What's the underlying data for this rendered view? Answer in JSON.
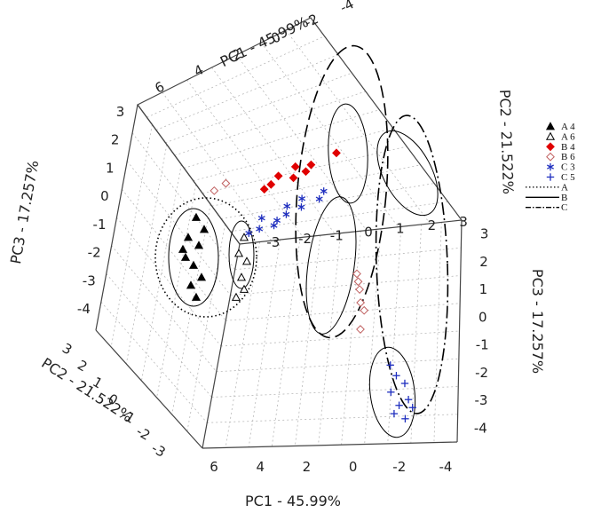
{
  "chart_data": {
    "type": "scatter",
    "projection": "3d",
    "axes": {
      "pc1": {
        "label": "PC1 - 45.99%",
        "ticks": [
          "6",
          "4",
          "2",
          "0",
          "-2",
          "-4"
        ]
      },
      "pc2": {
        "label": "PC2 - 21.522%",
        "ticks": [
          "3",
          "2",
          "1",
          "0",
          "-1",
          "-2",
          "-3"
        ]
      },
      "pc3": {
        "label": "PC3 - 17.257%",
        "ticks": [
          "3",
          "2",
          "1",
          "0",
          "-1",
          "-2",
          "-3",
          "-4"
        ]
      }
    },
    "left_wall_ticks": {
      "pc3": [
        "3",
        "2",
        "1",
        "0",
        "-1",
        "-2",
        "-3",
        "-4"
      ],
      "pc2": [
        "3",
        "2",
        "1",
        "0",
        "-1",
        "-2",
        "-3"
      ]
    },
    "legend": [
      {
        "label": "A 4",
        "marker": "triangle-filled",
        "color": "#000000"
      },
      {
        "label": "A 6",
        "marker": "triangle-open",
        "color": "#000000"
      },
      {
        "label": "B 4",
        "marker": "diamond-filled",
        "color": "#e00000"
      },
      {
        "label": "B 6",
        "marker": "diamond-open",
        "color": "#c06060"
      },
      {
        "label": "C 3",
        "marker": "asterisk",
        "color": "#1f2fbf"
      },
      {
        "label": "C 5",
        "marker": "plus",
        "color": "#1f2fbf"
      },
      {
        "label": "A",
        "line": "dotted",
        "color": "#000000"
      },
      {
        "label": "B",
        "line": "solid",
        "color": "#000000"
      },
      {
        "label": "C",
        "line": "dash-dot",
        "color": "#000000"
      }
    ],
    "series": [
      {
        "name": "A 4",
        "points": [
          {
            "pc1": 5.6,
            "pc3": -1.4
          },
          {
            "pc1": 5.9,
            "pc3": -1.7
          },
          {
            "pc1": 5.3,
            "pc3": -1.9
          },
          {
            "pc1": 5.7,
            "pc3": -2.1
          },
          {
            "pc1": 5.2,
            "pc3": -2.4
          },
          {
            "pc1": 5.5,
            "pc3": -2.6
          },
          {
            "pc1": 5.8,
            "pc3": -2.9
          },
          {
            "pc1": 5.4,
            "pc3": -3.1
          },
          {
            "pc1": 5.6,
            "pc3": -3.4
          },
          {
            "pc1": 5.1,
            "pc3": -2.2
          }
        ]
      },
      {
        "name": "A 6",
        "points": [
          {
            "pc1": 4.2,
            "pc3": -1.9
          },
          {
            "pc1": 4.0,
            "pc3": -2.3
          },
          {
            "pc1": 4.3,
            "pc3": -2.5
          },
          {
            "pc1": 4.1,
            "pc3": -2.9
          },
          {
            "pc1": 4.2,
            "pc3": -3.2
          },
          {
            "pc1": 3.9,
            "pc3": -3.4
          }
        ]
      },
      {
        "name": "B 4",
        "points": [
          {
            "pc1": 0.0,
            "pc2": 1.3
          },
          {
            "pc1": -0.3,
            "pc2": 0.3
          },
          {
            "pc1": -0.6,
            "pc2": 0.0
          },
          {
            "pc1": -0.2,
            "pc2": -0.2
          },
          {
            "pc1": -0.8,
            "pc2": -0.5
          },
          {
            "pc1": -0.5,
            "pc2": -0.9
          },
          {
            "pc1": -0.9,
            "pc2": -1.3
          },
          {
            "pc1": -1.1,
            "pc2": -1.6
          }
        ]
      },
      {
        "name": "B 6",
        "points": [
          {
            "pc1": -0.2,
            "pc2": -2.6
          },
          {
            "pc1": -0.5,
            "pc2": -3.1
          },
          {
            "pc1": 0.5,
            "pc3": 1.9
          },
          {
            "pc1": 0.4,
            "pc3": 1.6
          },
          {
            "pc1": 0.3,
            "pc3": 1.3
          },
          {
            "pc1": 0.2,
            "pc3": 0.8
          },
          {
            "pc1": 0.0,
            "pc3": 0.5
          },
          {
            "pc1": 0.1,
            "pc3": -0.2
          }
        ]
      },
      {
        "name": "C 3",
        "points": [
          {
            "pc1": -1.9,
            "pc2": 0.1
          },
          {
            "pc1": -2.3,
            "pc2": -0.2
          },
          {
            "pc1": -2.1,
            "pc2": -0.7
          },
          {
            "pc1": -2.6,
            "pc2": -0.9
          },
          {
            "pc1": -2.4,
            "pc2": -1.3
          },
          {
            "pc1": -2.9,
            "pc2": -1.5
          },
          {
            "pc1": -3.2,
            "pc2": -1.9
          },
          {
            "pc1": -3.5,
            "pc2": -2.1
          },
          {
            "pc1": -2.9,
            "pc2": -2.3
          },
          {
            "pc1": -3.6,
            "pc2": -2.6
          },
          {
            "pc1": -3.8,
            "pc2": -3.0
          }
        ]
      },
      {
        "name": "C 5",
        "points": [
          {
            "pc1": -1.4,
            "pc3": -1.6
          },
          {
            "pc1": -1.7,
            "pc3": -2.0
          },
          {
            "pc1": -2.1,
            "pc3": -2.3
          },
          {
            "pc1": -1.5,
            "pc3": -2.6
          },
          {
            "pc1": -2.3,
            "pc3": -2.9
          },
          {
            "pc1": -1.9,
            "pc3": -3.1
          },
          {
            "pc1": -2.5,
            "pc3": -3.2
          },
          {
            "pc1": -1.7,
            "pc3": -3.4
          },
          {
            "pc1": -2.2,
            "pc3": -3.6
          }
        ]
      }
    ]
  }
}
